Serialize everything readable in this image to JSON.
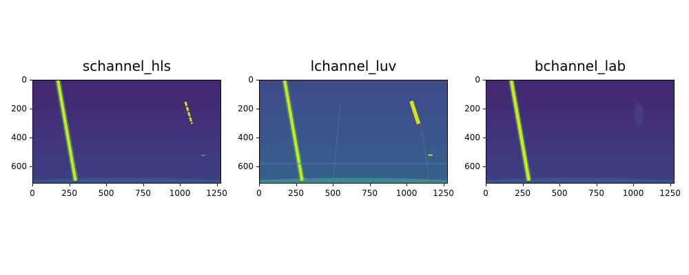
{
  "panels": [
    {
      "title": "schannel_hls",
      "style": "s"
    },
    {
      "title": "lchannel_luv",
      "style": "l"
    },
    {
      "title": "bchannel_lab",
      "style": "b"
    }
  ],
  "x_ticks": [
    "0",
    "250",
    "500",
    "750",
    "1000",
    "1250"
  ],
  "x_tick_values": [
    0,
    250,
    500,
    750,
    1000,
    1250
  ],
  "y_ticks": [
    "0",
    "200",
    "400",
    "600"
  ],
  "y_tick_values": [
    0,
    200,
    400,
    600
  ],
  "x_range": [
    0,
    1280
  ],
  "y_range": [
    0,
    720
  ],
  "colors": {
    "bg_dark": "#44206a",
    "bg_mid": "#3b4f8a",
    "lane": "#d8e219",
    "lane_glow": "#2fb47c"
  }
}
